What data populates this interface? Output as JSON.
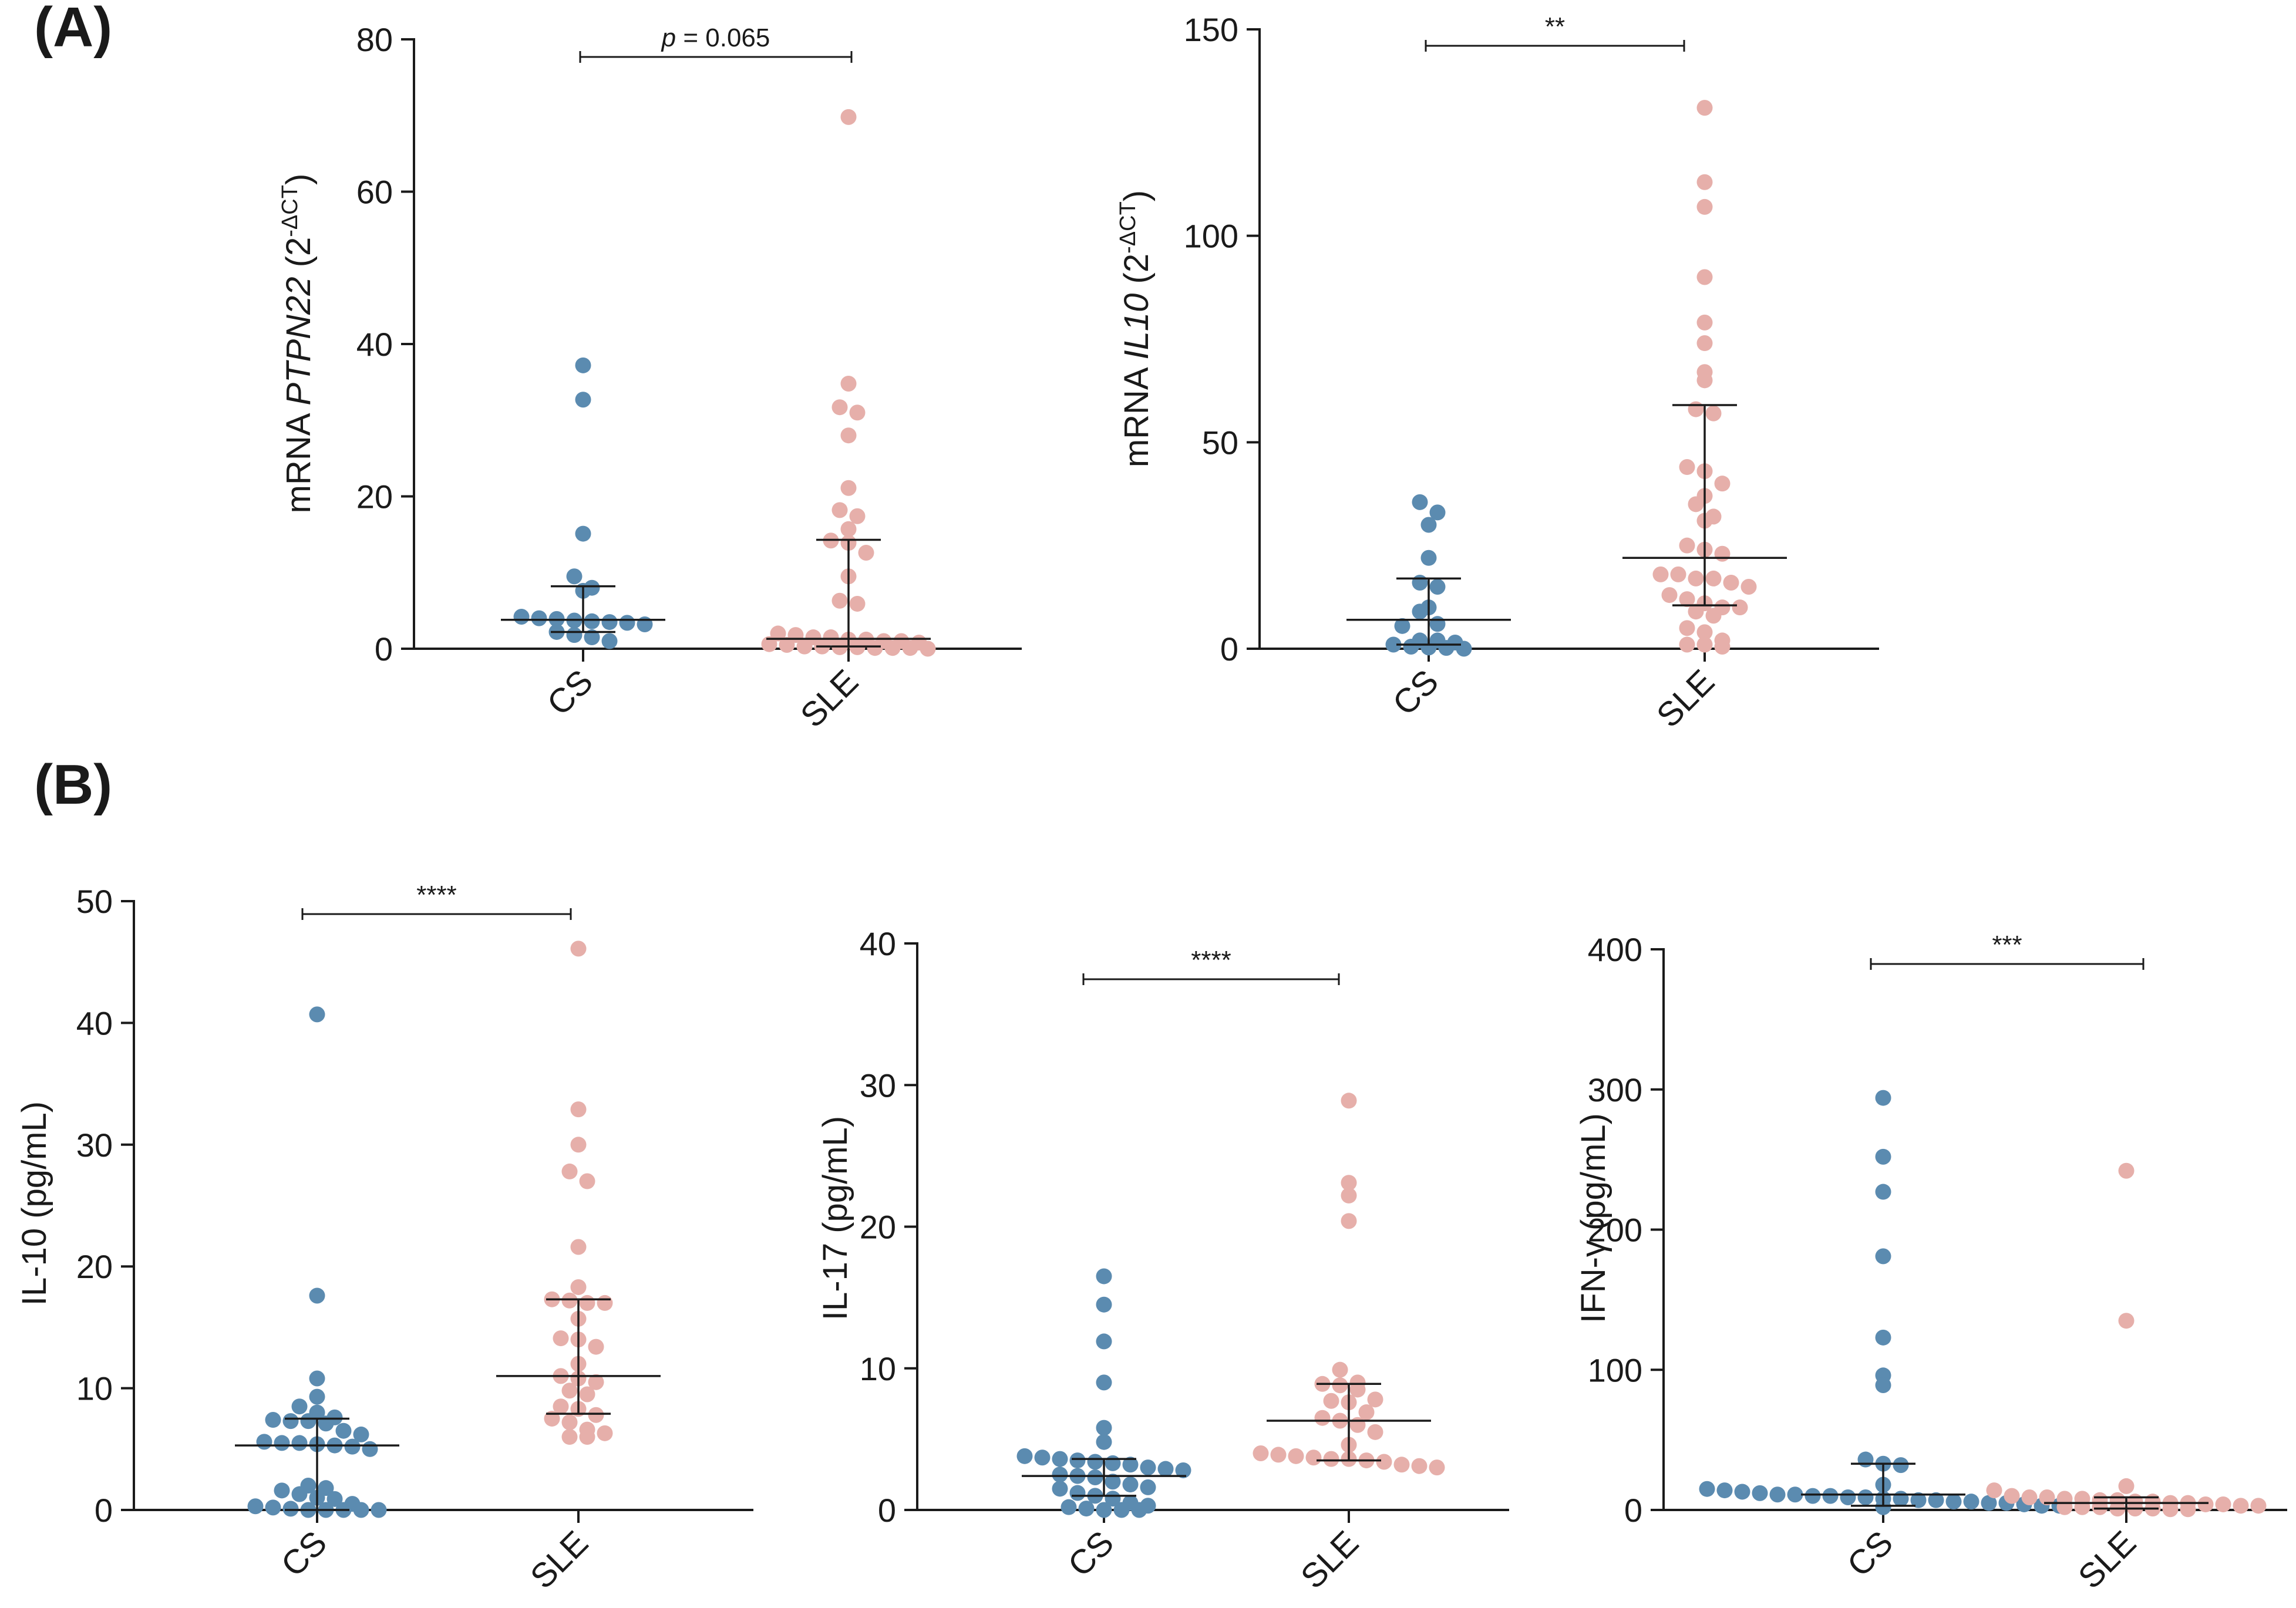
{
  "panel_labels": {
    "a": "(A)",
    "b": "(B)"
  },
  "categories": [
    "CS",
    "SLE"
  ],
  "colors": {
    "cs": "#5b8bb0",
    "sle": "#e6afaa",
    "axis": "#1a1a1a"
  },
  "chart_data": [
    {
      "id": "pptn22",
      "type": "scatter",
      "title": "",
      "ylabel_parts": [
        "mRNA ",
        "PTPN22",
        " (2",
        "-ΔCT",
        ")"
      ],
      "ylim": [
        0,
        80
      ],
      "yticks": [
        0,
        20,
        40,
        60,
        80
      ],
      "categories": [
        "CS",
        "SLE"
      ],
      "significance": "p = 0.065",
      "series": [
        {
          "name": "CS",
          "median": 3.8,
          "q1": 2.2,
          "q3": 8.2,
          "values": [
            37.2,
            32.7,
            15.1,
            9.5,
            8.0,
            7.6,
            4.2,
            4.0,
            3.9,
            3.7,
            3.6,
            3.5,
            3.4,
            3.2,
            2.2,
            1.8,
            1.5,
            1.0
          ]
        },
        {
          "name": "SLE",
          "median": 1.3,
          "q1": 0.3,
          "q3": 14.3,
          "values": [
            69.8,
            34.8,
            31.7,
            31.0,
            28.0,
            21.1,
            18.2,
            17.4,
            15.7,
            14.2,
            13.9,
            12.6,
            9.5,
            6.3,
            5.9,
            2.0,
            1.8,
            1.5,
            1.5,
            1.2,
            1.2,
            1.0,
            1.0,
            0.8,
            0.6,
            0.5,
            0.3,
            0.3,
            0.2,
            0.2,
            0.1,
            0.1,
            0.1,
            0.0
          ]
        }
      ]
    },
    {
      "id": "il10mrna",
      "type": "scatter",
      "title": "",
      "ylabel_parts": [
        "mRNA ",
        "IL10",
        " (2",
        "-ΔCT",
        ")"
      ],
      "ylim": [
        0,
        150
      ],
      "yticks": [
        0,
        50,
        100,
        150
      ],
      "categories": [
        "CS",
        "SLE"
      ],
      "significance": "**",
      "series": [
        {
          "name": "CS",
          "median": 7.0,
          "q1": 1.0,
          "q3": 17.0,
          "values": [
            35.5,
            33.0,
            30.0,
            22.0,
            16.0,
            15.0,
            10.0,
            9.0,
            6.0,
            5.5,
            2.0,
            2.0,
            1.5,
            1.0,
            0.5,
            0.3,
            0.2,
            0.0
          ]
        },
        {
          "name": "SLE",
          "median": 22.0,
          "q1": 10.5,
          "q3": 59.0,
          "values": [
            131,
            113,
            107,
            90,
            79,
            74,
            67,
            65,
            58,
            57,
            44,
            43,
            40,
            37,
            35,
            31,
            32,
            25,
            24,
            23,
            18,
            18,
            17,
            17,
            16,
            15,
            13,
            12,
            11,
            10,
            10,
            9,
            8,
            5,
            4,
            2,
            1,
            1,
            0.5
          ]
        }
      ]
    },
    {
      "id": "il10",
      "type": "scatter",
      "title": "",
      "ylabel_parts": [
        "IL-10 (pg/mL)"
      ],
      "ylim": [
        0,
        50
      ],
      "yticks": [
        0,
        10,
        20,
        30,
        40,
        50
      ],
      "categories": [
        "CS",
        "SLE"
      ],
      "significance": "****",
      "series": [
        {
          "name": "CS",
          "median": 5.3,
          "q1": 0.0,
          "q3": 7.5,
          "values": [
            40.7,
            17.6,
            10.8,
            9.3,
            8.5,
            8.0,
            7.6,
            7.4,
            7.3,
            7.3,
            7.1,
            6.5,
            6.2,
            5.6,
            5.5,
            5.5,
            5.4,
            5.3,
            5.2,
            5.0,
            2.0,
            1.8,
            1.6,
            1.3,
            1.0,
            0.9,
            0.5,
            0.3,
            0.2,
            0.1,
            0.0,
            0.0,
            0.0,
            0.0,
            0.0
          ]
        },
        {
          "name": "SLE",
          "median": 11.0,
          "q1": 7.9,
          "q3": 17.3,
          "values": [
            46.1,
            32.9,
            30.0,
            27.8,
            27.0,
            21.6,
            18.3,
            17.3,
            17.2,
            17.0,
            17.0,
            15.7,
            14.1,
            14.0,
            13.4,
            12.0,
            11.0,
            10.8,
            10.5,
            9.8,
            9.5,
            8.5,
            8.3,
            7.8,
            7.5,
            7.2,
            6.6,
            6.3,
            6.0,
            6.0
          ]
        }
      ]
    },
    {
      "id": "il17",
      "type": "scatter",
      "title": "",
      "ylabel_parts": [
        "IL-17 (pg/mL)"
      ],
      "ylim": [
        0,
        40
      ],
      "yticks": [
        0,
        10,
        20,
        30,
        40
      ],
      "categories": [
        "CS",
        "SLE"
      ],
      "significance": "****",
      "series": [
        {
          "name": "CS",
          "median": 2.4,
          "q1": 1.0,
          "q3": 3.6,
          "values": [
            16.5,
            14.5,
            11.9,
            9.0,
            5.8,
            4.8,
            3.8,
            3.7,
            3.6,
            3.5,
            3.4,
            3.3,
            3.2,
            3.0,
            2.9,
            2.8,
            2.5,
            2.4,
            2.3,
            2.0,
            1.8,
            1.6,
            1.5,
            1.2,
            1.0,
            0.8,
            0.5,
            0.3,
            0.2,
            0.1,
            0.0,
            0.0,
            0.0
          ]
        },
        {
          "name": "SLE",
          "median": 6.3,
          "q1": 3.5,
          "q3": 8.9,
          "values": [
            28.9,
            23.1,
            22.2,
            20.4,
            9.9,
            9.0,
            8.9,
            8.8,
            8.5,
            7.8,
            7.7,
            7.6,
            6.9,
            6.5,
            6.3,
            6.0,
            5.5,
            4.6,
            4.0,
            3.9,
            3.8,
            3.7,
            3.6,
            3.6,
            3.5,
            3.4,
            3.2,
            3.1,
            3.0
          ]
        }
      ]
    },
    {
      "id": "ifng",
      "type": "scatter",
      "title": "",
      "ylabel_parts": [
        "IFN-γ (pg/mL)"
      ],
      "ylim": [
        0,
        400
      ],
      "yticks": [
        0,
        100,
        200,
        300,
        400
      ],
      "categories": [
        "CS",
        "SLE"
      ],
      "significance": "***",
      "series": [
        {
          "name": "CS",
          "median": 11.0,
          "q1": 3.0,
          "q3": 33.0,
          "values": [
            294,
            252,
            227,
            181,
            123,
            96,
            89,
            36,
            33,
            32,
            18,
            15,
            14,
            13,
            12,
            11,
            11,
            10,
            10,
            9,
            9,
            8,
            8,
            7,
            7,
            6,
            6,
            5,
            5,
            4,
            3,
            3,
            2
          ]
        },
        {
          "name": "SLE",
          "median": 5.0,
          "q1": 1.0,
          "q3": 9.0,
          "values": [
            242,
            135,
            17,
            14,
            10,
            9,
            9,
            8,
            8,
            7,
            7,
            6,
            6,
            5,
            5,
            4,
            4,
            3,
            3,
            2,
            2,
            2,
            1,
            1,
            1,
            0.5,
            0.5
          ]
        }
      ]
    }
  ]
}
